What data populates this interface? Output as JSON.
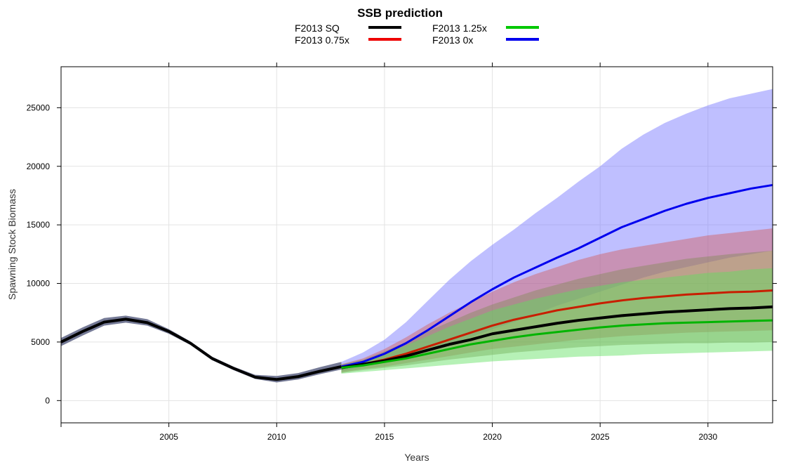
{
  "chart_data": {
    "type": "line",
    "title": "SSB prediction",
    "xlabel": "Years",
    "ylabel": "Spawning Stock Biomass",
    "xlim": [
      2000,
      2033
    ],
    "ylim": [
      -1900,
      28500
    ],
    "x_ticks": [
      2005,
      2010,
      2015,
      2020,
      2025,
      2030
    ],
    "y_ticks": [
      0,
      5000,
      10000,
      15000,
      20000,
      25000
    ],
    "grid": true,
    "legend_position": "top-center",
    "historical": {
      "name": "Historical",
      "color": "#000000",
      "band_color": "#6e7390",
      "x": [
        2000,
        2001,
        2002,
        2003,
        2004,
        2005,
        2006,
        2007,
        2008,
        2009,
        2010,
        2011,
        2012,
        2013
      ],
      "values": [
        5000,
        5900,
        6700,
        6950,
        6650,
        5900,
        4900,
        3600,
        2750,
        2000,
        1800,
        2050,
        2500,
        2900
      ],
      "lower": [
        4650,
        5550,
        6400,
        6650,
        6400,
        5700,
        4750,
        3450,
        2600,
        1850,
        1550,
        1800,
        2250,
        2650
      ],
      "upper": [
        5350,
        6250,
        7050,
        7250,
        6950,
        6100,
        5050,
        3750,
        2900,
        2200,
        2100,
        2350,
        2850,
        3300
      ]
    },
    "projection_x": [
      2013,
      2014,
      2015,
      2016,
      2017,
      2018,
      2019,
      2020,
      2021,
      2022,
      2023,
      2024,
      2025,
      2026,
      2027,
      2028,
      2029,
      2030,
      2031,
      2032,
      2033
    ],
    "series": [
      {
        "name": "F2013 0x",
        "color": "#0000ee",
        "band_color": "#7070ff",
        "values": [
          2900,
          3300,
          4000,
          4900,
          6000,
          7200,
          8400,
          9500,
          10500,
          11350,
          12200,
          13000,
          13900,
          14800,
          15500,
          16200,
          16800,
          17300,
          17700,
          18100,
          18400
        ],
        "lower": [
          2500,
          2900,
          3400,
          3800,
          4300,
          4800,
          5400,
          6100,
          6700,
          7400,
          8100,
          8700,
          9300,
          9900,
          10500,
          11000,
          11400,
          11800,
          12200,
          12500,
          12800
        ],
        "upper": [
          3300,
          4100,
          5200,
          6700,
          8500,
          10300,
          11900,
          13300,
          14600,
          16000,
          17300,
          18700,
          20000,
          21500,
          22700,
          23700,
          24500,
          25200,
          25800,
          26200,
          26600
        ]
      },
      {
        "name": "F2013 0.75x",
        "color": "#c81e00",
        "band_color": "#d25a5a",
        "values": [
          2800,
          3100,
          3500,
          4000,
          4600,
          5200,
          5800,
          6400,
          6900,
          7300,
          7700,
          8000,
          8300,
          8550,
          8750,
          8900,
          9050,
          9150,
          9250,
          9300,
          9400
        ],
        "lower": [
          2400,
          2700,
          2900,
          3200,
          3500,
          3800,
          4100,
          4400,
          4600,
          4800,
          5000,
          5200,
          5350,
          5500,
          5600,
          5700,
          5800,
          5850,
          5900,
          5950,
          6000
        ],
        "upper": [
          3100,
          3600,
          4400,
          5400,
          6500,
          7500,
          8400,
          9300,
          10100,
          10800,
          11400,
          12000,
          12500,
          12900,
          13200,
          13500,
          13800,
          14100,
          14300,
          14500,
          14700
        ]
      },
      {
        "name": "F2013 SQ",
        "color": "#000000",
        "band_color": "#858a5a",
        "values": [
          2800,
          3100,
          3400,
          3800,
          4300,
          4800,
          5200,
          5700,
          6000,
          6300,
          6600,
          6850,
          7050,
          7250,
          7400,
          7550,
          7650,
          7750,
          7850,
          7900,
          8000
        ],
        "lower": [
          2350,
          2600,
          2800,
          3000,
          3250,
          3500,
          3700,
          3900,
          4100,
          4250,
          4400,
          4550,
          4650,
          4750,
          4800,
          4850,
          4900,
          4900,
          4950,
          4950,
          5000
        ],
        "upper": [
          3100,
          3500,
          4200,
          5000,
          5900,
          6700,
          7500,
          8200,
          8800,
          9400,
          9900,
          10400,
          10800,
          11200,
          11500,
          11800,
          12100,
          12300,
          12500,
          12650,
          12800
        ]
      },
      {
        "name": "F2013 1.25x",
        "color": "#00b400",
        "band_color": "#5ee05e",
        "values": [
          2800,
          3000,
          3300,
          3600,
          4000,
          4400,
          4800,
          5100,
          5400,
          5650,
          5850,
          6050,
          6250,
          6400,
          6500,
          6600,
          6650,
          6700,
          6750,
          6800,
          6850
        ],
        "lower": [
          2300,
          2450,
          2600,
          2750,
          2900,
          3050,
          3200,
          3350,
          3450,
          3550,
          3650,
          3750,
          3800,
          3850,
          3950,
          4000,
          4050,
          4100,
          4150,
          4200,
          4250
        ],
        "upper": [
          3000,
          3400,
          4000,
          4700,
          5500,
          6300,
          7000,
          7700,
          8200,
          8700,
          9100,
          9500,
          9800,
          10100,
          10300,
          10500,
          10700,
          10900,
          11000,
          11200,
          11300
        ]
      }
    ],
    "legend": [
      {
        "label": "F2013 SQ",
        "color": "#000000"
      },
      {
        "label": "F2013 0.75x",
        "color": "#ee0000"
      },
      {
        "label": "F2013 1.25x",
        "color": "#00c800"
      },
      {
        "label": "F2013 0x",
        "color": "#0000ee"
      }
    ]
  }
}
